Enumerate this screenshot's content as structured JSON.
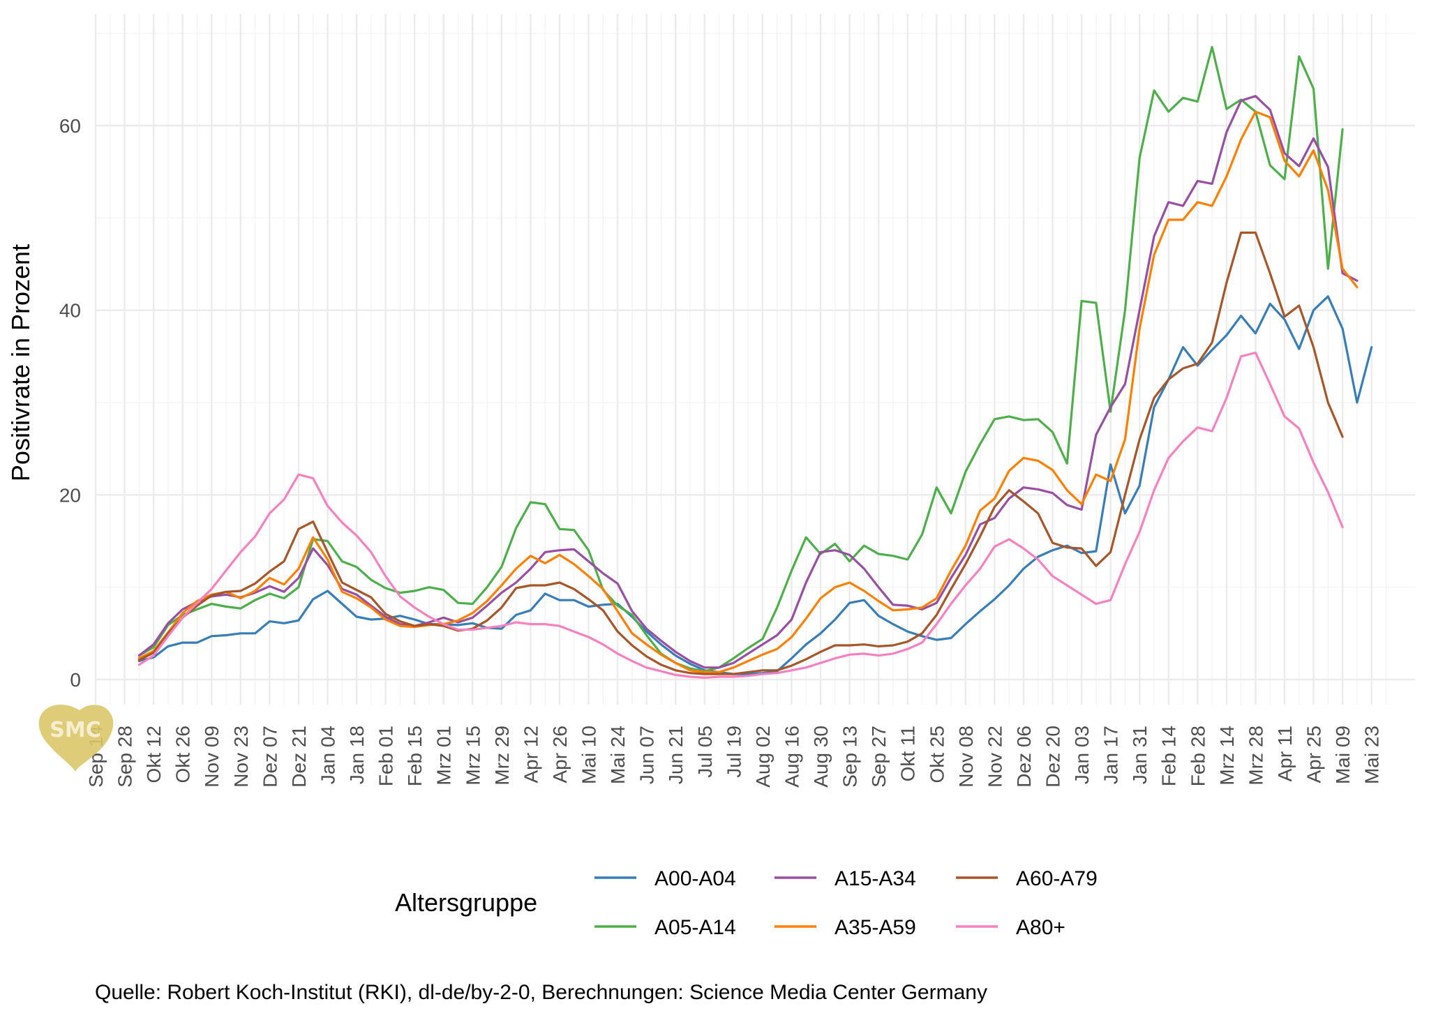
{
  "chart_data": {
    "type": "line",
    "title": "",
    "xlabel": "",
    "ylabel": "Positivrate in Prozent",
    "ylim": [
      0,
      68
    ],
    "yticks": [
      0,
      20,
      40,
      60
    ],
    "x_tick_labels": [
      "Sep 14",
      "Sep 28",
      "Okt 12",
      "Okt 26",
      "Nov 09",
      "Nov 23",
      "Dez 07",
      "Dez 21",
      "Jan 04",
      "Jan 18",
      "Feb 01",
      "Feb 15",
      "Mrz 01",
      "Mrz 15",
      "Mrz 29",
      "Apr 12",
      "Apr 26",
      "Mai 10",
      "Mai 24",
      "Jun 07",
      "Jun 21",
      "Jul 05",
      "Jul 19",
      "Aug 02",
      "Aug 16",
      "Aug 30",
      "Sep 13",
      "Sep 27",
      "Okt 11",
      "Okt 25",
      "Nov 08",
      "Nov 22",
      "Dez 06",
      "Dez 20",
      "Jan 03",
      "Jan 17",
      "Jan 31",
      "Feb 14",
      "Feb 28",
      "Mrz 14",
      "Mrz 28",
      "Apr 11",
      "Apr 25",
      "Mai 09",
      "Mai 23"
    ],
    "x_tick_positions_in_weeks": [
      0,
      2,
      4,
      6,
      8,
      10,
      12,
      14,
      16,
      18,
      20,
      22,
      24,
      26,
      28,
      30,
      32,
      34,
      36,
      38,
      40,
      42,
      44,
      46,
      48,
      50,
      52,
      54,
      56,
      58,
      60,
      62,
      64,
      66,
      68,
      70,
      72,
      74,
      76,
      78,
      80,
      82,
      84,
      86,
      88
    ],
    "x_start_week": 3,
    "x_step_weeks": 1,
    "legend": {
      "title": "Altersgruppe",
      "position": "bottom"
    },
    "grid": true,
    "series": [
      {
        "name": "A00-A04",
        "color": "#377EB8",
        "values": [
          2.0,
          2.4,
          3.6,
          4.0,
          4.0,
          4.7,
          4.8,
          5.0,
          5.0,
          6.3,
          6.1,
          6.4,
          8.7,
          9.6,
          8.2,
          6.8,
          6.5,
          6.6,
          6.9,
          6.5,
          6.0,
          6.0,
          5.9,
          6.1,
          5.6,
          5.5,
          7.0,
          7.5,
          9.3,
          8.6,
          8.6,
          7.9,
          8.1,
          8.2,
          6.8,
          5.2,
          3.8,
          2.6,
          1.7,
          1.0,
          0.8,
          0.6,
          0.6,
          0.7,
          0.9,
          2.3,
          3.8,
          5.0,
          6.5,
          8.3,
          8.6,
          6.9,
          6.0,
          5.2,
          4.7,
          4.3,
          4.5,
          6.0,
          7.4,
          8.7,
          10.2,
          12.0,
          13.3,
          14.0,
          14.5,
          13.7,
          13.9,
          23.3,
          18.0,
          21.0,
          29.5,
          32.5,
          36.0,
          34.0,
          35.7,
          37.3,
          39.4,
          37.5,
          40.7,
          39.0,
          35.8,
          40.0,
          41.5,
          38.0,
          30.0,
          36.0
        ]
      },
      {
        "name": "A05-A14",
        "color": "#4DAF4A",
        "values": [
          2.6,
          3.5,
          5.9,
          7.0,
          7.6,
          8.2,
          7.9,
          7.7,
          8.6,
          9.3,
          8.8,
          10.0,
          15.2,
          15.0,
          12.8,
          12.2,
          10.8,
          9.9,
          9.4,
          9.6,
          10.0,
          9.7,
          8.3,
          8.2,
          10.0,
          12.2,
          16.4,
          19.2,
          19.0,
          16.3,
          16.2,
          14.0,
          9.7,
          8.0,
          7.0,
          4.8,
          2.8,
          1.8,
          1.2,
          0.9,
          1.3,
          2.3,
          3.4,
          4.4,
          7.8,
          11.8,
          15.4,
          13.6,
          14.7,
          12.8,
          14.5,
          13.6,
          13.4,
          13.0,
          15.7,
          20.8,
          18.0,
          22.5,
          25.5,
          28.2,
          28.5,
          28.1,
          28.2,
          26.8,
          23.4,
          41.0,
          40.8,
          29.0,
          40.0,
          56.5,
          63.8,
          61.5,
          63.0,
          62.6,
          68.5,
          61.8,
          62.8,
          61.5,
          55.7,
          54.2,
          67.5,
          64.0,
          44.5,
          59.6
        ]
      },
      {
        "name": "A15-A34",
        "color": "#984EA3",
        "values": [
          2.6,
          3.8,
          6.1,
          7.6,
          8.4,
          9.0,
          9.2,
          8.9,
          9.4,
          10.1,
          9.5,
          11.0,
          14.2,
          12.4,
          9.8,
          9.2,
          8.0,
          6.8,
          6.0,
          5.8,
          6.2,
          6.7,
          6.2,
          6.7,
          8.0,
          9.4,
          10.5,
          12.0,
          13.8,
          14.0,
          14.1,
          12.8,
          11.5,
          10.4,
          7.4,
          5.5,
          4.2,
          3.0,
          2.0,
          1.3,
          1.3,
          1.8,
          2.8,
          3.8,
          4.8,
          6.5,
          10.5,
          13.8,
          14.0,
          13.5,
          12.0,
          10.0,
          8.1,
          8.0,
          7.6,
          8.3,
          11.0,
          13.5,
          16.8,
          17.5,
          19.6,
          20.8,
          20.6,
          20.2,
          18.9,
          18.4,
          26.5,
          29.5,
          32.0,
          40.0,
          48.0,
          51.7,
          51.3,
          54.0,
          53.7,
          59.3,
          62.7,
          63.2,
          61.7,
          57.0,
          55.6,
          58.6,
          55.5,
          44.0,
          43.2
        ]
      },
      {
        "name": "A35-A59",
        "color": "#FF7F00",
        "values": [
          2.3,
          3.1,
          5.1,
          7.2,
          8.5,
          9.2,
          9.5,
          8.8,
          9.6,
          11.0,
          10.3,
          12.0,
          15.4,
          13.0,
          9.5,
          8.8,
          7.8,
          6.5,
          5.8,
          5.7,
          5.9,
          6.0,
          6.4,
          7.2,
          8.5,
          10.2,
          12.0,
          13.4,
          12.6,
          13.5,
          12.5,
          11.2,
          9.8,
          7.4,
          5.0,
          3.8,
          2.7,
          1.8,
          1.0,
          0.8,
          0.8,
          1.3,
          2.0,
          2.7,
          3.3,
          4.6,
          6.6,
          8.8,
          10.0,
          10.5,
          9.6,
          8.5,
          7.5,
          7.6,
          7.8,
          8.8,
          11.8,
          14.5,
          18.3,
          19.6,
          22.6,
          24.0,
          23.7,
          22.7,
          20.5,
          19.0,
          22.2,
          21.5,
          26.0,
          38.0,
          46.0,
          49.8,
          49.8,
          51.7,
          51.3,
          54.5,
          58.5,
          61.5,
          60.9,
          56.2,
          54.5,
          57.3,
          53.0,
          44.5,
          42.5
        ]
      },
      {
        "name": "A60-A79",
        "color": "#A65628",
        "values": [
          2.1,
          2.9,
          5.0,
          6.7,
          8.0,
          9.1,
          9.5,
          9.6,
          10.4,
          11.7,
          12.8,
          16.3,
          17.1,
          13.8,
          10.5,
          9.7,
          8.9,
          7.1,
          6.3,
          5.8,
          6.0,
          5.8,
          5.3,
          5.5,
          6.4,
          7.8,
          9.9,
          10.2,
          10.2,
          10.5,
          9.8,
          8.7,
          7.5,
          5.2,
          3.7,
          2.5,
          1.6,
          1.0,
          0.7,
          0.6,
          0.6,
          0.6,
          0.8,
          1.0,
          1.0,
          1.5,
          2.2,
          3.0,
          3.7,
          3.7,
          3.8,
          3.6,
          3.7,
          4.1,
          5.0,
          7.0,
          9.8,
          12.5,
          15.5,
          18.7,
          20.5,
          19.3,
          18.0,
          14.8,
          14.3,
          14.2,
          12.3,
          13.8,
          20.0,
          26.0,
          30.5,
          32.5,
          33.7,
          34.2,
          36.5,
          43.0,
          48.4,
          48.4,
          44.0,
          39.3,
          40.5,
          36.0,
          30.0,
          26.3
        ]
      },
      {
        "name": "A80+",
        "color": "#F781BF",
        "values": [
          1.6,
          2.6,
          4.7,
          6.7,
          8.3,
          9.8,
          11.8,
          13.8,
          15.5,
          18.0,
          19.5,
          22.2,
          21.8,
          18.8,
          17.0,
          15.6,
          13.8,
          11.2,
          9.0,
          7.8,
          6.8,
          6.0,
          5.4,
          5.4,
          5.6,
          5.8,
          6.2,
          6.0,
          6.0,
          5.8,
          5.2,
          4.6,
          3.8,
          2.8,
          2.0,
          1.3,
          0.9,
          0.5,
          0.3,
          0.2,
          0.3,
          0.3,
          0.4,
          0.6,
          0.7,
          1.0,
          1.3,
          1.8,
          2.3,
          2.7,
          2.8,
          2.6,
          2.8,
          3.3,
          4.0,
          6.0,
          8.2,
          10.2,
          12.0,
          14.4,
          15.2,
          14.2,
          13.0,
          11.2,
          10.2,
          9.2,
          8.2,
          8.6,
          12.5,
          16.0,
          20.5,
          24.0,
          25.8,
          27.3,
          26.9,
          30.5,
          35.0,
          35.4,
          32.0,
          28.5,
          27.2,
          23.5,
          20.3,
          16.5
        ]
      }
    ]
  },
  "caption": "Quelle: Robert Koch-Institut (RKI), dl-de/by-2-0, Berechnungen: Science Media Center Germany",
  "logo": {
    "text": "SMC",
    "color": "#DCC66A"
  }
}
